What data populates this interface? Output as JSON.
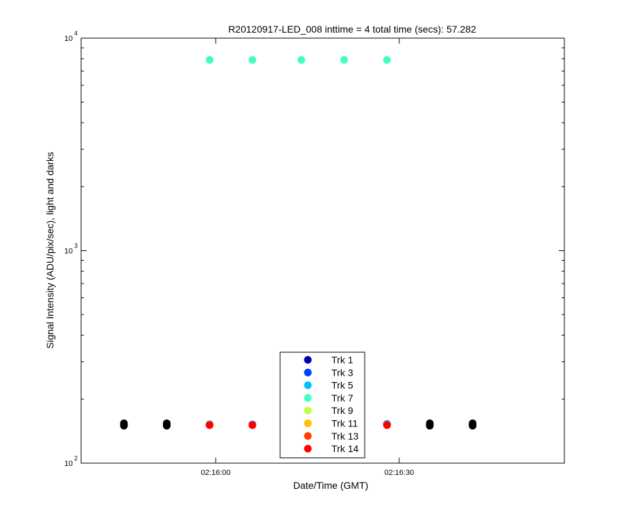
{
  "chart_data": {
    "type": "scatter",
    "title": "R20120917-LED_008 inttime = 4 total time (secs): 57.282",
    "xlabel": "Date/Time (GMT)",
    "ylabel": "Signal Intensity (ADU/pix/sec), light and darks",
    "y_scale": "log",
    "ylim": [
      100,
      10000
    ],
    "xlim": [
      "02:15:38",
      "02:16:57"
    ],
    "x_ticks": [
      "02:16:00",
      "02:16:30"
    ],
    "y_ticks": [
      {
        "base": "10",
        "exp": "2",
        "value": 100
      },
      {
        "base": "10",
        "exp": "3",
        "value": 1000
      },
      {
        "base": "10",
        "exp": "4",
        "value": 10000
      }
    ],
    "grid": false,
    "legend_position": "bottom-center",
    "series": [
      {
        "name": "Trk 1",
        "color": "#0000b4",
        "x": [
          "02:15:59",
          "02:16:06",
          "02:16:28"
        ],
        "y": [
          152,
          152,
          153
        ]
      },
      {
        "name": "Trk 3",
        "color": "#0040ff",
        "x": [
          "02:15:59",
          "02:16:06",
          "02:16:28"
        ],
        "y": [
          152,
          152,
          153
        ]
      },
      {
        "name": "Trk 5",
        "color": "#00bfff",
        "x": [
          "02:15:59",
          "02:16:06",
          "02:16:28"
        ],
        "y": [
          152,
          152,
          153
        ]
      },
      {
        "name": "Trk 7",
        "color": "#40ffbf",
        "x": [
          "02:15:59",
          "02:16:06",
          "02:16:14",
          "02:16:21",
          "02:16:28"
        ],
        "y": [
          7900,
          7900,
          7900,
          7900,
          7900
        ]
      },
      {
        "name": "Trk 9",
        "color": "#bfff40",
        "x": [
          "02:15:59",
          "02:16:06",
          "02:16:28"
        ],
        "y": [
          151,
          151,
          151
        ]
      },
      {
        "name": "Trk 11",
        "color": "#ffbf00",
        "x": [
          "02:15:59",
          "02:16:06",
          "02:16:28"
        ],
        "y": [
          151,
          151,
          151
        ]
      },
      {
        "name": "Trk 13",
        "color": "#ff4000",
        "x": [
          "02:15:59",
          "02:16:06",
          "02:16:28"
        ],
        "y": [
          151,
          151,
          151
        ]
      },
      {
        "name": "Trk 14",
        "color": "#ff0000",
        "x": [
          "02:15:59",
          "02:16:06",
          "02:16:28"
        ],
        "y": [
          151,
          151,
          151
        ]
      }
    ],
    "darks": {
      "color": "#000000",
      "x": [
        "02:15:45",
        "02:15:45",
        "02:15:45",
        "02:15:52",
        "02:15:52",
        "02:15:52",
        "02:16:35",
        "02:16:35",
        "02:16:35",
        "02:16:42",
        "02:16:42",
        "02:16:42"
      ],
      "y": [
        150,
        152,
        154,
        150,
        152,
        154,
        150,
        152,
        154,
        150,
        152,
        154
      ]
    }
  }
}
